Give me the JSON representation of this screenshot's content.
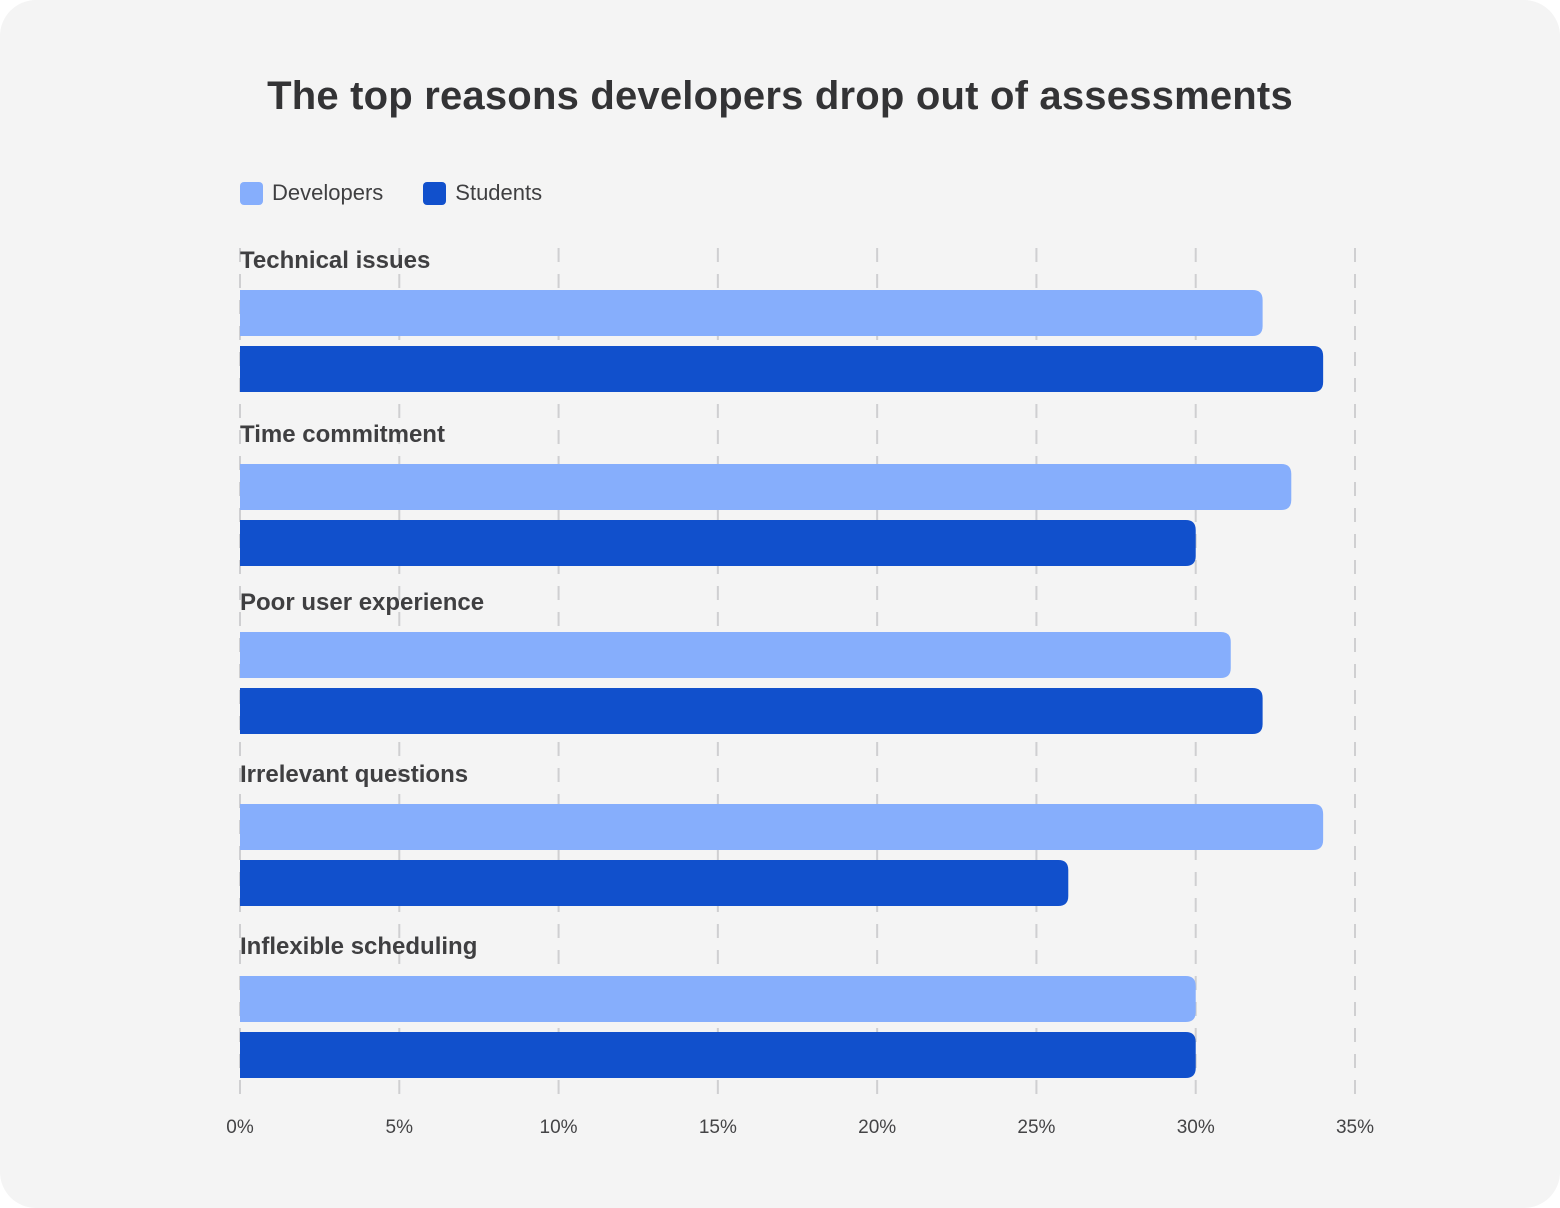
{
  "chart_data": {
    "type": "bar",
    "orientation": "horizontal",
    "title": "The top reasons developers drop out of assessments",
    "categories": [
      "Technical issues",
      "Time commitment",
      "Poor user experience",
      "Irrelevant questions",
      "Inflexible scheduling"
    ],
    "series": [
      {
        "name": "Developers",
        "color": "#86aefc",
        "values": [
          32.1,
          33.0,
          31.1,
          34.0,
          30.0
        ]
      },
      {
        "name": "Students",
        "color": "#1150cc",
        "values": [
          34.0,
          30.0,
          32.1,
          26.0,
          30.0
        ]
      }
    ],
    "xlim": [
      0,
      35
    ],
    "ticks": [
      0,
      5,
      10,
      15,
      20,
      25,
      30,
      35
    ],
    "tick_labels": [
      "0%",
      "5%",
      "10%",
      "15%",
      "20%",
      "25%",
      "30%",
      "35%"
    ],
    "grid": "vertical dashed",
    "legend_position": "top-left"
  }
}
